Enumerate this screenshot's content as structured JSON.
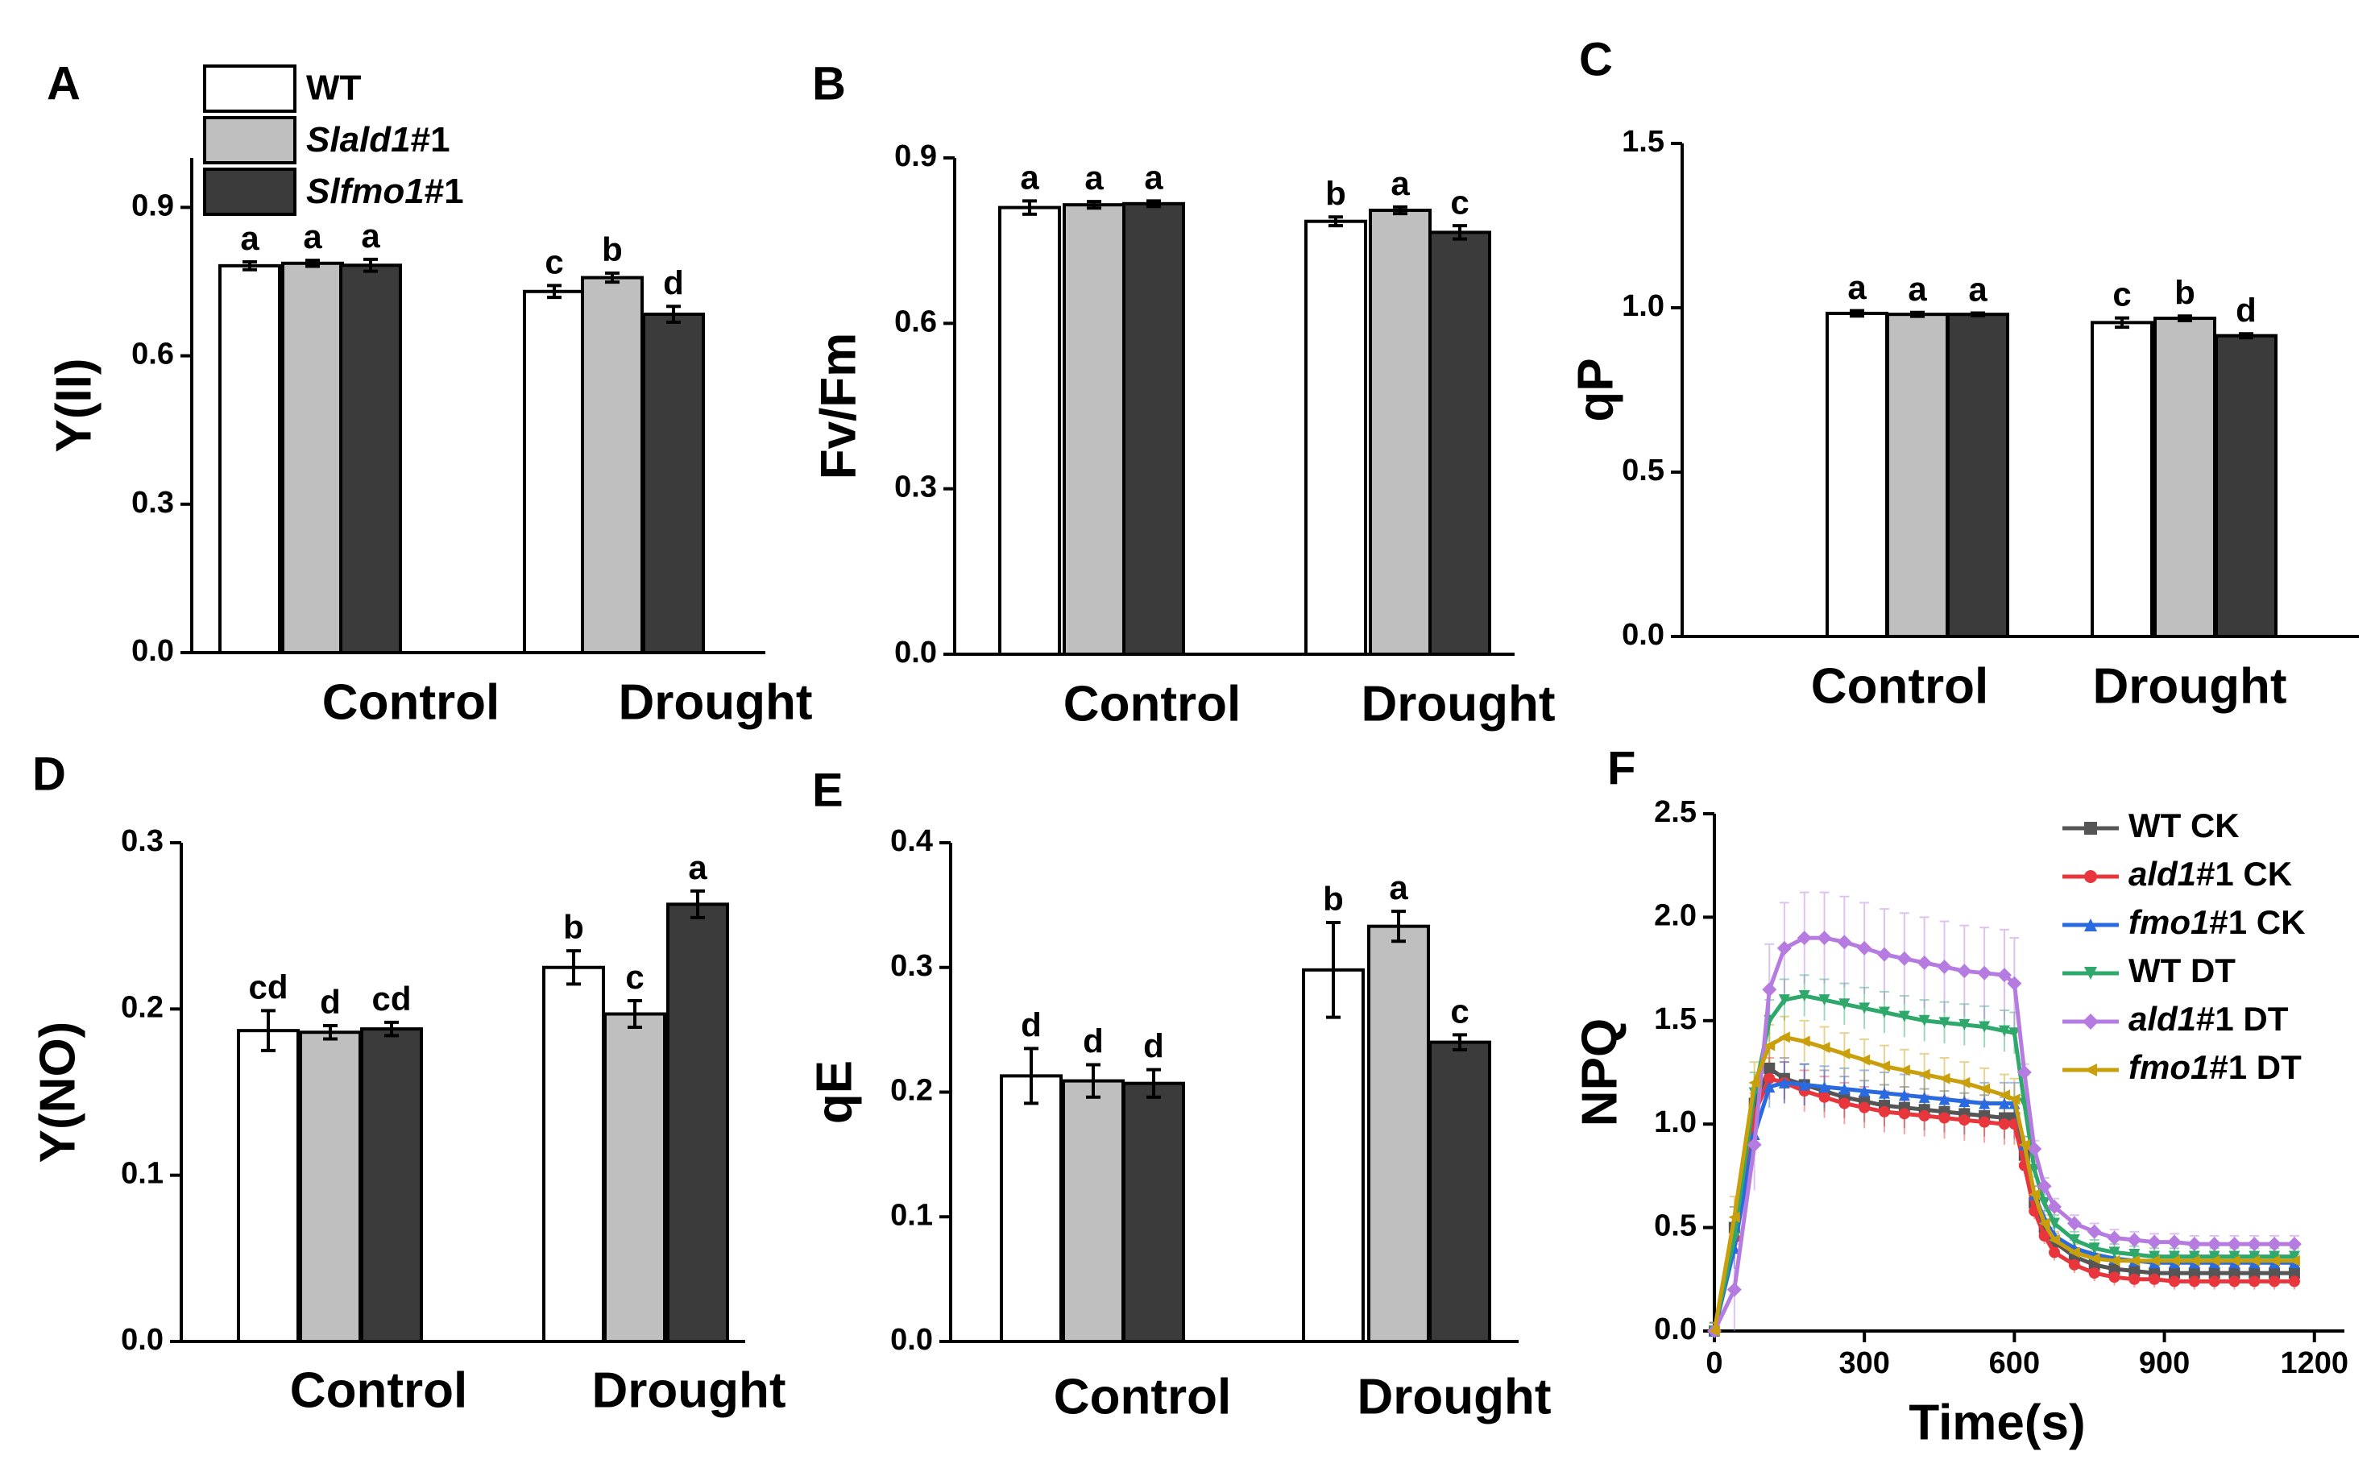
{
  "colors": {
    "WT": "#ffffff",
    "Slald1#1": "#bfbfbf",
    "Slfmo1#1": "#3b3b3b",
    "WT_CK": "#555555",
    "ald1_CK": "#e8363c",
    "fmo1_CK": "#2a6ae0",
    "WT_DT": "#2ea86b",
    "ald1_DT": "#b57be0",
    "fmo1_DT": "#c9a00c"
  },
  "legend_bar": [
    {
      "name": "WT",
      "italic": "",
      "suffix": "WT",
      "color_key": "WT"
    },
    {
      "name": "Slald1#1",
      "italic": "Slald1",
      "suffix": "#1",
      "color_key": "Slald1#1"
    },
    {
      "name": "Slfmo1#1",
      "italic": "Slfmo1",
      "suffix": "#1",
      "color_key": "Slfmo1#1"
    }
  ],
  "chart_data": [
    {
      "panel": "A",
      "type": "bar",
      "ylabel": "Y(II)",
      "categories": [
        "Control",
        "Drought"
      ],
      "ylim": [
        0,
        1.0
      ],
      "yticks": [
        "0.0",
        "0.3",
        "0.6",
        "0.9"
      ],
      "ytick_values": [
        0,
        0.3,
        0.6,
        0.9
      ],
      "series": [
        {
          "name": "WT",
          "values": [
            0.782,
            0.73
          ],
          "errors": [
            0.008,
            0.012
          ],
          "labels": [
            "a",
            "c"
          ]
        },
        {
          "name": "Slald1#1",
          "values": [
            0.787,
            0.758
          ],
          "errors": [
            0.006,
            0.009
          ],
          "labels": [
            "a",
            "b"
          ]
        },
        {
          "name": "Slfmo1#1",
          "values": [
            0.783,
            0.684
          ],
          "errors": [
            0.012,
            0.016
          ],
          "labels": [
            "a",
            "d"
          ]
        }
      ]
    },
    {
      "panel": "B",
      "type": "bar",
      "ylabel": "Fv/Fm",
      "categories": [
        "Control",
        "Drought"
      ],
      "ylim": [
        0,
        0.9
      ],
      "yticks": [
        "0.0",
        "0.3",
        "0.6",
        "0.9"
      ],
      "ytick_values": [
        0,
        0.3,
        0.6,
        0.9
      ],
      "series": [
        {
          "name": "WT",
          "values": [
            0.81,
            0.785
          ],
          "errors": [
            0.012,
            0.008
          ],
          "labels": [
            "a",
            "b"
          ]
        },
        {
          "name": "Slald1#1",
          "values": [
            0.815,
            0.805
          ],
          "errors": [
            0.006,
            0.006
          ],
          "labels": [
            "a",
            "a"
          ]
        },
        {
          "name": "Slfmo1#1",
          "values": [
            0.817,
            0.765
          ],
          "errors": [
            0.005,
            0.012
          ],
          "labels": [
            "a",
            "c"
          ]
        }
      ]
    },
    {
      "panel": "C",
      "type": "bar",
      "ylabel": "qP",
      "categories": [
        "Control",
        "Drought"
      ],
      "ylim": [
        0,
        1.5
      ],
      "yticks": [
        "0.0",
        "0.5",
        "1.0",
        "1.5"
      ],
      "ytick_values": [
        0,
        0.5,
        1.0,
        1.5
      ],
      "series": [
        {
          "name": "WT",
          "values": [
            0.983,
            0.955
          ],
          "errors": [
            0.008,
            0.014
          ],
          "labels": [
            "a",
            "c"
          ]
        },
        {
          "name": "Slald1#1",
          "values": [
            0.98,
            0.968
          ],
          "errors": [
            0.006,
            0.007
          ],
          "labels": [
            "a",
            "b"
          ]
        },
        {
          "name": "Slfmo1#1",
          "values": [
            0.98,
            0.915
          ],
          "errors": [
            0.004,
            0.006
          ],
          "labels": [
            "a",
            "d"
          ]
        }
      ]
    },
    {
      "panel": "D",
      "type": "bar",
      "ylabel": "Y(NO)",
      "categories": [
        "Control",
        "Drought"
      ],
      "ylim": [
        0,
        0.3
      ],
      "yticks": [
        "0.0",
        "0.1",
        "0.2",
        "0.3"
      ],
      "ytick_values": [
        0,
        0.1,
        0.2,
        0.3
      ],
      "series": [
        {
          "name": "WT",
          "values": [
            0.187,
            0.225
          ],
          "errors": [
            0.012,
            0.01
          ],
          "labels": [
            "cd",
            "b"
          ]
        },
        {
          "name": "Slald1#1",
          "values": [
            0.186,
            0.197
          ],
          "errors": [
            0.004,
            0.008
          ],
          "labels": [
            "d",
            "c"
          ]
        },
        {
          "name": "Slfmo1#1",
          "values": [
            0.188,
            0.263
          ],
          "errors": [
            0.004,
            0.008
          ],
          "labels": [
            "cd",
            "a"
          ]
        }
      ]
    },
    {
      "panel": "E",
      "type": "bar",
      "ylabel": "qE",
      "categories": [
        "Control",
        "Drought"
      ],
      "ylim": [
        0,
        0.4
      ],
      "yticks": [
        "0.0",
        "0.1",
        "0.2",
        "0.3",
        "0.4"
      ],
      "ytick_values": [
        0,
        0.1,
        0.2,
        0.3,
        0.4
      ],
      "series": [
        {
          "name": "WT",
          "values": [
            0.213,
            0.298
          ],
          "errors": [
            0.022,
            0.038
          ],
          "labels": [
            "d",
            "b"
          ]
        },
        {
          "name": "Slald1#1",
          "values": [
            0.209,
            0.333
          ],
          "errors": [
            0.013,
            0.012
          ],
          "labels": [
            "d",
            "a"
          ]
        },
        {
          "name": "Slfmo1#1",
          "values": [
            0.207,
            0.24
          ],
          "errors": [
            0.011,
            0.006
          ],
          "labels": [
            "d",
            "c"
          ]
        }
      ]
    },
    {
      "panel": "F",
      "type": "line",
      "ylabel": "NPQ",
      "xlabel": "Time(s)",
      "xlim": [
        0,
        1260
      ],
      "ylim": [
        0,
        2.5
      ],
      "xticks": [
        "0",
        "300",
        "600",
        "900",
        "1200"
      ],
      "xtick_values": [
        0,
        300,
        600,
        900,
        1200
      ],
      "yticks": [
        "0.0",
        "0.5",
        "1.0",
        "1.5",
        "2.0",
        "2.5"
      ],
      "ytick_values": [
        0,
        0.5,
        1.0,
        1.5,
        2.0,
        2.5
      ],
      "x": [
        0,
        40,
        80,
        110,
        140,
        180,
        220,
        260,
        300,
        340,
        380,
        420,
        460,
        500,
        540,
        580,
        600,
        620,
        640,
        660,
        680,
        720,
        760,
        800,
        840,
        880,
        920,
        960,
        1000,
        1040,
        1080,
        1120,
        1160
      ],
      "series": [
        {
          "name": "WT CK",
          "label_main": "WT",
          "label_suffix": " CK",
          "italic": false,
          "color_key": "WT_CK",
          "marker": "square",
          "values": [
            0,
            0.5,
            1.1,
            1.27,
            1.22,
            1.19,
            1.16,
            1.13,
            1.11,
            1.09,
            1.08,
            1.07,
            1.06,
            1.05,
            1.04,
            1.03,
            1.03,
            0.85,
            0.62,
            0.5,
            0.43,
            0.36,
            0.32,
            0.3,
            0.29,
            0.28,
            0.28,
            0.28,
            0.28,
            0.28,
            0.28,
            0.28,
            0.28
          ]
        },
        {
          "name": "ald1#1 CK",
          "label_main": "ald1",
          "label_suffix": "#1 CK",
          "italic": true,
          "color_key": "ald1_CK",
          "marker": "circle",
          "values": [
            0,
            0.45,
            1.05,
            1.22,
            1.2,
            1.16,
            1.13,
            1.1,
            1.08,
            1.06,
            1.05,
            1.04,
            1.03,
            1.02,
            1.01,
            1.0,
            1.0,
            0.8,
            0.58,
            0.46,
            0.38,
            0.32,
            0.28,
            0.26,
            0.25,
            0.25,
            0.24,
            0.24,
            0.24,
            0.24,
            0.24,
            0.24,
            0.24
          ]
        },
        {
          "name": "fmo1#1 CK",
          "label_main": "fmo1",
          "label_suffix": "#1 CK",
          "italic": true,
          "color_key": "fmo1_CK",
          "marker": "triangle-up",
          "values": [
            0,
            0.4,
            0.95,
            1.18,
            1.2,
            1.19,
            1.18,
            1.17,
            1.16,
            1.15,
            1.14,
            1.13,
            1.12,
            1.11,
            1.1,
            1.1,
            1.1,
            0.9,
            0.66,
            0.54,
            0.46,
            0.4,
            0.37,
            0.35,
            0.34,
            0.33,
            0.33,
            0.33,
            0.33,
            0.33,
            0.33,
            0.33,
            0.33
          ]
        },
        {
          "name": "WT DT",
          "label_main": "WT",
          "label_suffix": " DT",
          "italic": false,
          "color_key": "WT_DT",
          "marker": "triangle-down",
          "values": [
            0,
            0.45,
            1.15,
            1.5,
            1.6,
            1.62,
            1.6,
            1.58,
            1.56,
            1.54,
            1.52,
            1.5,
            1.49,
            1.48,
            1.47,
            1.45,
            1.44,
            1.1,
            0.78,
            0.62,
            0.52,
            0.44,
            0.4,
            0.38,
            0.37,
            0.36,
            0.36,
            0.36,
            0.36,
            0.36,
            0.36,
            0.36,
            0.36
          ]
        },
        {
          "name": "ald1#1 DT",
          "label_main": "ald1",
          "label_suffix": "#1 DT",
          "italic": true,
          "color_key": "ald1_DT",
          "marker": "diamond",
          "values": [
            0,
            0.2,
            0.9,
            1.65,
            1.85,
            1.9,
            1.9,
            1.88,
            1.85,
            1.82,
            1.8,
            1.78,
            1.76,
            1.74,
            1.73,
            1.72,
            1.68,
            1.25,
            0.88,
            0.7,
            0.6,
            0.52,
            0.48,
            0.45,
            0.44,
            0.43,
            0.43,
            0.42,
            0.42,
            0.42,
            0.42,
            0.42,
            0.42
          ]
        },
        {
          "name": "fmo1#1 DT",
          "label_main": "fmo1",
          "label_suffix": "#1 DT",
          "italic": true,
          "color_key": "fmo1_DT",
          "marker": "triangle-left",
          "values": [
            0,
            0.55,
            1.2,
            1.38,
            1.42,
            1.4,
            1.37,
            1.34,
            1.31,
            1.28,
            1.26,
            1.24,
            1.22,
            1.2,
            1.17,
            1.14,
            1.12,
            0.9,
            0.66,
            0.52,
            0.44,
            0.38,
            0.35,
            0.34,
            0.34,
            0.34,
            0.34,
            0.34,
            0.34,
            0.34,
            0.34,
            0.34,
            0.34
          ]
        }
      ]
    }
  ]
}
